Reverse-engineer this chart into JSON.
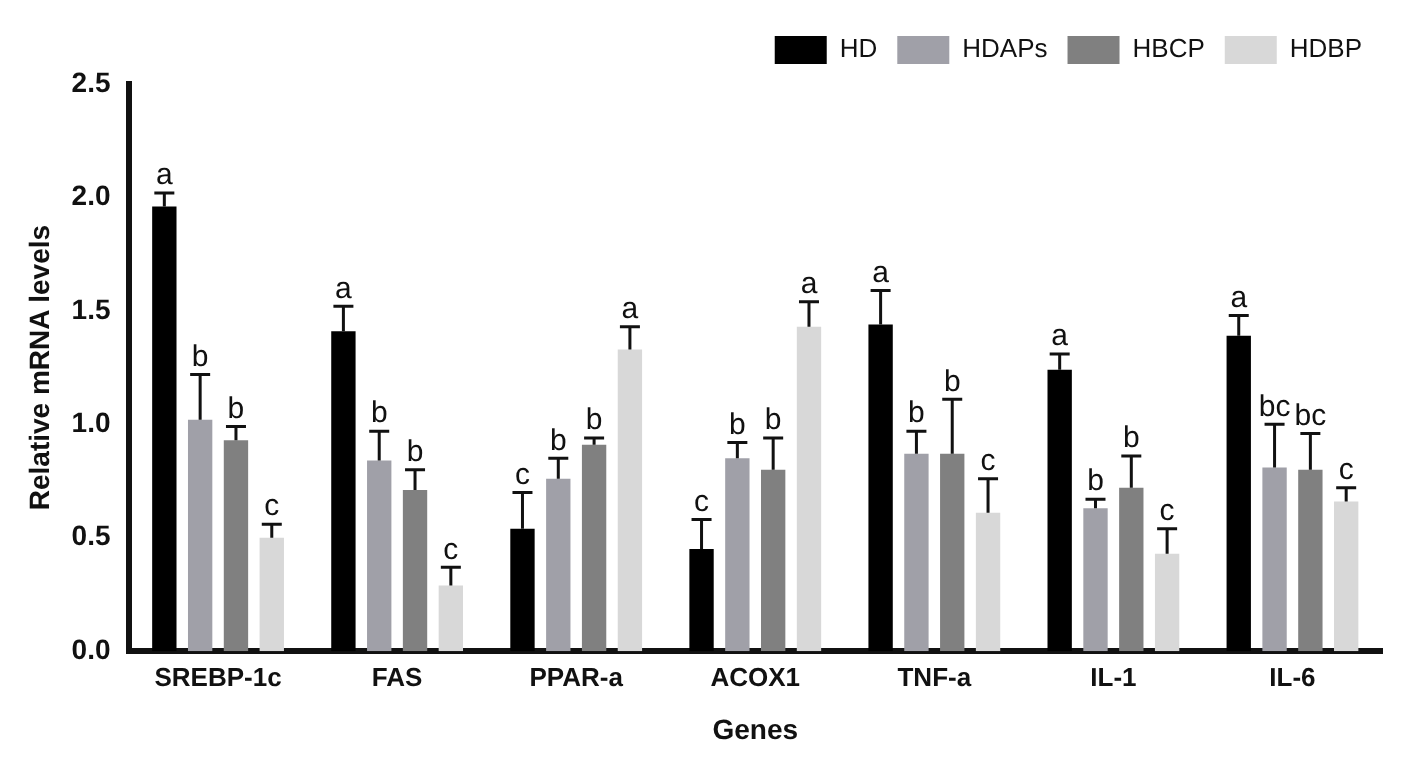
{
  "chart_data": {
    "type": "bar",
    "xlabel": "Genes",
    "ylabel": "Relative mRNA levels",
    "categories": [
      "SREBP-1c",
      "FAS",
      "PPAR-a",
      "ACOX1",
      "TNF-a",
      "IL-1",
      "IL-6"
    ],
    "series": [
      {
        "name": "HD",
        "color": "#000000",
        "values": [
          1.96,
          1.41,
          0.54,
          0.45,
          1.44,
          1.24,
          1.39
        ],
        "errors": [
          [
            1.96,
            2.02
          ],
          [
            1.41,
            1.52
          ],
          [
            0.54,
            0.7
          ],
          [
            0.45,
            0.58
          ],
          [
            1.44,
            1.59
          ],
          [
            1.24,
            1.31
          ],
          [
            1.39,
            1.48
          ]
        ],
        "value_labels": [
          "a",
          "a",
          "c",
          "c",
          "a",
          "a",
          "a"
        ]
      },
      {
        "name": "HDAPs",
        "color": "#a0a0a8",
        "values": [
          1.02,
          0.84,
          0.76,
          0.85,
          0.87,
          0.63,
          0.81
        ],
        "errors": [
          [
            1.02,
            1.22
          ],
          [
            0.84,
            0.97
          ],
          [
            0.76,
            0.85
          ],
          [
            0.85,
            0.92
          ],
          [
            0.87,
            0.97
          ],
          [
            0.63,
            0.67
          ],
          [
            0.81,
            1.0
          ]
        ],
        "value_labels": [
          "b",
          "b",
          "b",
          "b",
          "b",
          "b",
          "bc"
        ]
      },
      {
        "name": "HBCP",
        "color": "#808080",
        "values": [
          0.93,
          0.71,
          0.91,
          0.8,
          0.87,
          0.72,
          0.8
        ],
        "errors": [
          [
            0.93,
            0.99
          ],
          [
            0.71,
            0.8
          ],
          [
            0.91,
            0.94
          ],
          [
            0.8,
            0.94
          ],
          [
            0.87,
            1.11
          ],
          [
            0.72,
            0.86
          ],
          [
            0.8,
            0.96
          ]
        ],
        "value_labels": [
          "b",
          "b",
          "b",
          "b",
          "b",
          "b",
          "bc"
        ]
      },
      {
        "name": "HDBP",
        "color": "#d8d8d8",
        "values": [
          0.5,
          0.29,
          1.33,
          1.43,
          0.61,
          0.43,
          0.66
        ],
        "errors": [
          [
            0.5,
            0.56
          ],
          [
            0.29,
            0.37
          ],
          [
            1.33,
            1.43
          ],
          [
            1.43,
            1.54
          ],
          [
            0.61,
            0.76
          ],
          [
            0.43,
            0.54
          ],
          [
            0.66,
            0.72
          ]
        ],
        "value_labels": [
          "c",
          "c",
          "a",
          "a",
          "c",
          "c",
          "c"
        ]
      }
    ],
    "ylim": [
      0,
      2.5
    ],
    "yticks": [
      {
        "value": 0,
        "label": "0.0"
      },
      {
        "value": 0.5,
        "label": "0.5"
      },
      {
        "value": 1,
        "label": "1.0"
      },
      {
        "value": 1.5,
        "label": "1.5"
      },
      {
        "value": 2,
        "label": "2.0"
      },
      {
        "value": 2.5,
        "label": "2.5"
      }
    ],
    "grid": false,
    "legend": "top right"
  }
}
